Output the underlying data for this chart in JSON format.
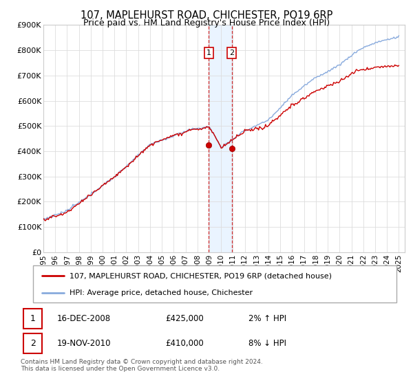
{
  "title": "107, MAPLEHURST ROAD, CHICHESTER, PO19 6RP",
  "subtitle": "Price paid vs. HM Land Registry's House Price Index (HPI)",
  "ylabel_ticks": [
    "£0",
    "£100K",
    "£200K",
    "£300K",
    "£400K",
    "£500K",
    "£600K",
    "£700K",
    "£800K",
    "£900K"
  ],
  "ylim": [
    0,
    900000
  ],
  "xlim_start": 1995.0,
  "xlim_end": 2025.5,
  "xtick_years": [
    1995,
    1996,
    1997,
    1998,
    1999,
    2000,
    2001,
    2002,
    2003,
    2004,
    2005,
    2006,
    2007,
    2008,
    2009,
    2010,
    2011,
    2012,
    2013,
    2014,
    2015,
    2016,
    2017,
    2018,
    2019,
    2020,
    2021,
    2022,
    2023,
    2024,
    2025
  ],
  "transaction1": {
    "date_x": 2008.96,
    "price": 425000,
    "label": "1"
  },
  "transaction2": {
    "date_x": 2010.89,
    "price": 410000,
    "label": "2"
  },
  "highlight_x1": 2008.96,
  "highlight_x2": 2010.89,
  "legend_line1": "107, MAPLEHURST ROAD, CHICHESTER, PO19 6RP (detached house)",
  "legend_line2": "HPI: Average price, detached house, Chichester",
  "annotation1_label": "1",
  "annotation1_date": "16-DEC-2008",
  "annotation1_price": "£425,000",
  "annotation1_hpi": "2% ↑ HPI",
  "annotation2_label": "2",
  "annotation2_date": "19-NOV-2010",
  "annotation2_price": "£410,000",
  "annotation2_hpi": "8% ↓ HPI",
  "footer": "Contains HM Land Registry data © Crown copyright and database right 2024.\nThis data is licensed under the Open Government Licence v3.0.",
  "line_color_property": "#cc0000",
  "line_color_hpi": "#88aadd",
  "marker_color": "#cc0000",
  "highlight_color": "#ddeeff",
  "highlight_alpha": 0.6
}
